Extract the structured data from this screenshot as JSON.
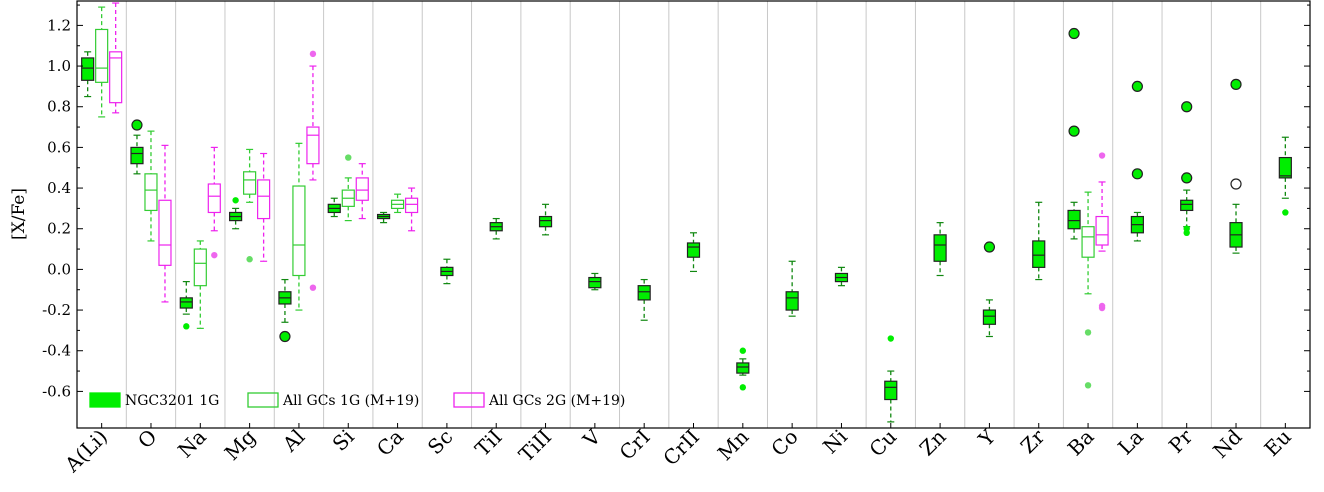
{
  "chart_data": {
    "type": "box",
    "ylabel": "[X/Fe]",
    "ylim": [
      -0.78,
      1.32
    ],
    "yticks": [
      -0.6,
      -0.4,
      -0.2,
      0.0,
      0.2,
      0.4,
      0.6,
      0.8,
      1.0,
      1.2
    ],
    "ytick_labels": [
      "-0.6",
      "-0.4",
      "-0.2",
      "0.0",
      "0.2",
      "0.4",
      "0.6",
      "0.8",
      "1.0",
      "1.2"
    ],
    "categories": [
      "A(Li)",
      "O",
      "Na",
      "Mg",
      "Al",
      "Si",
      "Ca",
      "Sc",
      "TiI",
      "TiII",
      "V",
      "CrI",
      "CrII",
      "Mn",
      "Co",
      "Ni",
      "Cu",
      "Zn",
      "Y",
      "Zr",
      "Ba",
      "La",
      "Pr",
      "Nd",
      "Eu"
    ],
    "colors": {
      "ngc": "#00ee00",
      "gc1g": "#33cc33",
      "gc2g": "#ee22ee",
      "edge": "#1a1a1a"
    },
    "legend_position": "bottom-left",
    "series": [
      {
        "name": "NGC3201 1G",
        "style": "filled",
        "boxes": [
          {
            "cat": 0,
            "min": 0.85,
            "q1": 0.93,
            "median": 0.99,
            "q3": 1.04,
            "max": 1.07,
            "outliers": []
          },
          {
            "cat": 1,
            "min": 0.47,
            "q1": 0.52,
            "median": 0.57,
            "q3": 0.6,
            "max": 0.66,
            "outliers": [],
            "circled": [
              0.71
            ]
          },
          {
            "cat": 2,
            "min": -0.22,
            "q1": -0.19,
            "median": -0.16,
            "q3": -0.14,
            "max": -0.06,
            "outliers": [
              -0.28
            ]
          },
          {
            "cat": 3,
            "min": 0.2,
            "q1": 0.24,
            "median": 0.26,
            "q3": 0.28,
            "max": 0.3,
            "outliers": [
              0.34
            ]
          },
          {
            "cat": 4,
            "min": -0.26,
            "q1": -0.17,
            "median": -0.14,
            "q3": -0.11,
            "max": -0.05,
            "outliers": [],
            "circled": [
              -0.33
            ]
          },
          {
            "cat": 5,
            "min": 0.26,
            "q1": 0.28,
            "median": 0.3,
            "q3": 0.32,
            "max": 0.35,
            "outliers": []
          },
          {
            "cat": 6,
            "min": 0.23,
            "q1": 0.25,
            "median": 0.26,
            "q3": 0.27,
            "max": 0.28,
            "outliers": []
          },
          {
            "cat": 7,
            "min": -0.07,
            "q1": -0.03,
            "median": -0.01,
            "q3": 0.01,
            "max": 0.05,
            "outliers": []
          },
          {
            "cat": 8,
            "min": 0.15,
            "q1": 0.19,
            "median": 0.21,
            "q3": 0.23,
            "max": 0.25,
            "outliers": []
          },
          {
            "cat": 9,
            "min": 0.17,
            "q1": 0.21,
            "median": 0.24,
            "q3": 0.26,
            "max": 0.32,
            "outliers": []
          },
          {
            "cat": 10,
            "min": -0.1,
            "q1": -0.09,
            "median": -0.06,
            "q3": -0.04,
            "max": -0.02,
            "outliers": []
          },
          {
            "cat": 11,
            "min": -0.25,
            "q1": -0.15,
            "median": -0.11,
            "q3": -0.08,
            "max": -0.05,
            "outliers": []
          },
          {
            "cat": 12,
            "min": -0.01,
            "q1": 0.06,
            "median": 0.11,
            "q3": 0.13,
            "max": 0.18,
            "outliers": []
          },
          {
            "cat": 13,
            "min": -0.52,
            "q1": -0.51,
            "median": -0.48,
            "q3": -0.46,
            "max": -0.44,
            "outliers": [
              -0.4,
              -0.58
            ]
          },
          {
            "cat": 14,
            "min": -0.23,
            "q1": -0.2,
            "median": -0.14,
            "q3": -0.11,
            "max": 0.04,
            "outliers": []
          },
          {
            "cat": 15,
            "min": -0.08,
            "q1": -0.06,
            "median": -0.04,
            "q3": -0.02,
            "max": 0.01,
            "outliers": []
          },
          {
            "cat": 16,
            "min": -0.75,
            "q1": -0.64,
            "median": -0.58,
            "q3": -0.55,
            "max": -0.5,
            "outliers": [
              -0.34
            ]
          },
          {
            "cat": 17,
            "min": -0.03,
            "q1": 0.04,
            "median": 0.12,
            "q3": 0.17,
            "max": 0.23,
            "outliers": []
          },
          {
            "cat": 18,
            "min": -0.33,
            "q1": -0.27,
            "median": -0.23,
            "q3": -0.2,
            "max": -0.15,
            "outliers": [],
            "circled": [
              0.11
            ]
          },
          {
            "cat": 19,
            "min": -0.05,
            "q1": 0.01,
            "median": 0.07,
            "q3": 0.14,
            "max": 0.33,
            "outliers": []
          },
          {
            "cat": 20,
            "min": 0.15,
            "q1": 0.2,
            "median": 0.24,
            "q3": 0.29,
            "max": 0.33,
            "outliers": [],
            "circled": [
              0.68,
              1.16
            ]
          },
          {
            "cat": 21,
            "min": 0.14,
            "q1": 0.18,
            "median": 0.22,
            "q3": 0.26,
            "max": 0.28,
            "outliers": [],
            "circled": [
              0.47,
              0.9
            ]
          },
          {
            "cat": 22,
            "min": 0.21,
            "q1": 0.29,
            "median": 0.32,
            "q3": 0.34,
            "max": 0.39,
            "outliers": [
              0.18,
              0.2
            ],
            "circled": [
              0.45,
              0.8
            ]
          },
          {
            "cat": 23,
            "min": 0.08,
            "q1": 0.11,
            "median": 0.17,
            "q3": 0.23,
            "max": 0.32,
            "outliers": [],
            "circled": [
              0.91
            ],
            "open_circled": [
              0.42
            ]
          },
          {
            "cat": 24,
            "min": 0.35,
            "q1": 0.45,
            "median": 0.46,
            "q3": 0.55,
            "max": 0.65,
            "outliers": [
              0.28
            ]
          }
        ]
      },
      {
        "name": "All GCs 1G (M+19)",
        "style": "open-green",
        "boxes": [
          {
            "cat": 0,
            "min": 0.75,
            "q1": 0.92,
            "median": 0.99,
            "q3": 1.18,
            "max": 1.29,
            "outliers": []
          },
          {
            "cat": 1,
            "min": 0.14,
            "q1": 0.29,
            "median": 0.39,
            "q3": 0.47,
            "max": 0.68,
            "outliers": []
          },
          {
            "cat": 2,
            "min": -0.29,
            "q1": -0.08,
            "median": 0.03,
            "q3": 0.1,
            "max": 0.14,
            "outliers": []
          },
          {
            "cat": 3,
            "min": 0.33,
            "q1": 0.37,
            "median": 0.44,
            "q3": 0.48,
            "max": 0.59,
            "outliers": [
              0.05
            ]
          },
          {
            "cat": 4,
            "min": -0.2,
            "q1": -0.03,
            "median": 0.12,
            "q3": 0.41,
            "max": 0.62,
            "outliers": []
          },
          {
            "cat": 5,
            "min": 0.24,
            "q1": 0.31,
            "median": 0.35,
            "q3": 0.39,
            "max": 0.45,
            "outliers": [
              0.55
            ]
          },
          {
            "cat": 6,
            "min": 0.28,
            "q1": 0.3,
            "median": 0.32,
            "q3": 0.34,
            "max": 0.37,
            "outliers": []
          },
          {
            "cat": 20,
            "min": -0.12,
            "q1": 0.06,
            "median": 0.16,
            "q3": 0.21,
            "max": 0.38,
            "outliers": [
              -0.31,
              -0.57
            ]
          }
        ]
      },
      {
        "name": "All GCs 2G (M+19)",
        "style": "open-magenta",
        "boxes": [
          {
            "cat": 0,
            "min": 0.77,
            "q1": 0.82,
            "median": 1.04,
            "q3": 1.07,
            "max": 1.31,
            "outliers": []
          },
          {
            "cat": 1,
            "min": -0.16,
            "q1": 0.02,
            "median": 0.12,
            "q3": 0.34,
            "max": 0.61,
            "outliers": []
          },
          {
            "cat": 2,
            "min": 0.19,
            "q1": 0.28,
            "median": 0.36,
            "q3": 0.42,
            "max": 0.6,
            "outliers": [
              0.07
            ]
          },
          {
            "cat": 3,
            "min": 0.04,
            "q1": 0.25,
            "median": 0.36,
            "q3": 0.44,
            "max": 0.57,
            "outliers": []
          },
          {
            "cat": 4,
            "min": 0.44,
            "q1": 0.52,
            "median": 0.66,
            "q3": 0.7,
            "max": 1.0,
            "outliers": [
              1.06,
              -0.09
            ]
          },
          {
            "cat": 5,
            "min": 0.25,
            "q1": 0.34,
            "median": 0.39,
            "q3": 0.45,
            "max": 0.52,
            "outliers": []
          },
          {
            "cat": 6,
            "min": 0.19,
            "q1": 0.28,
            "median": 0.32,
            "q3": 0.35,
            "max": 0.4,
            "outliers": []
          },
          {
            "cat": 20,
            "min": 0.09,
            "q1": 0.12,
            "median": 0.17,
            "q3": 0.26,
            "max": 0.43,
            "outliers": [
              0.56,
              -0.18,
              -0.19
            ]
          }
        ]
      }
    ]
  },
  "legend": [
    {
      "label": "NGC3201 1G",
      "style": "filled"
    },
    {
      "label": "All GCs 1G (M+19)",
      "style": "open-green"
    },
    {
      "label": "All GCs 2G (M+19)",
      "style": "open-magenta"
    }
  ]
}
